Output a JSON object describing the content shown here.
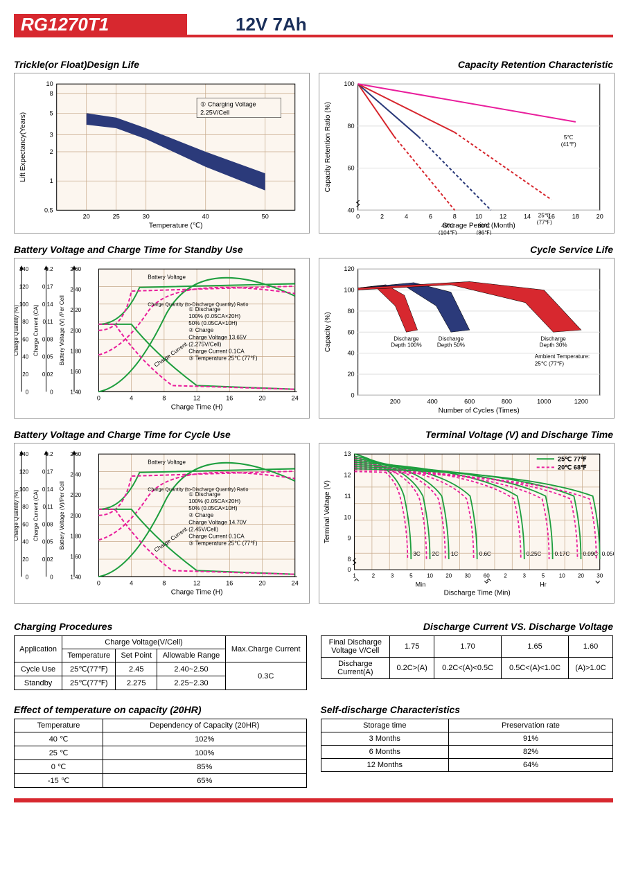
{
  "header": {
    "model": "RG1270T1",
    "spec": "12V  7Ah"
  },
  "chart1": {
    "title": "Trickle(or Float)Design Life",
    "type": "area-band",
    "xlabel": "Temperature (℃)",
    "ylabel": "Lift  Expectancy(Years)",
    "xlim": [
      15,
      55
    ],
    "xtick": [
      20,
      25,
      30,
      40,
      50
    ],
    "ylim_log_ticks": [
      0.5,
      1,
      2,
      3,
      5,
      8,
      10
    ],
    "band_color": "#2b3a7a",
    "band_upper": [
      [
        20,
        5
      ],
      [
        25,
        4.5
      ],
      [
        30,
        3.5
      ],
      [
        40,
        2
      ],
      [
        50,
        1.2
      ]
    ],
    "band_lower": [
      [
        20,
        3.8
      ],
      [
        25,
        3.5
      ],
      [
        30,
        2.7
      ],
      [
        40,
        1.4
      ],
      [
        50,
        0.8
      ]
    ],
    "annotation": "① Charging Voltage\n2.25V/Cell",
    "grid_color": "#c6a98a",
    "background": "#fcf6ef"
  },
  "chart2": {
    "title": "Capacity  Retention  Characteristic",
    "type": "line",
    "xlabel": "Storage Period (Month)",
    "ylabel": "Capacity Retention Ratio (%)",
    "xlim": [
      0,
      20
    ],
    "xtick_step": 2,
    "ylim": [
      40,
      100
    ],
    "ytick_step": 20,
    "background": "#fff",
    "grid_color": "#ddd",
    "lines": [
      {
        "label": "40℃\n(104℉)",
        "color": "#d7282f",
        "solid_to": 3,
        "dashed_to": 8,
        "points": [
          [
            0,
            100
          ],
          [
            3,
            75
          ],
          [
            8,
            40
          ]
        ]
      },
      {
        "label": "30℃\n(86℉)",
        "color": "#2b3a7a",
        "solid_to": 5,
        "dashed_to": 11,
        "points": [
          [
            0,
            100
          ],
          [
            5,
            75
          ],
          [
            11,
            40
          ]
        ]
      },
      {
        "label": "25℃\n(77℉)",
        "color": "#d7282f",
        "solid_to": 8,
        "dashed_to": 16,
        "points": [
          [
            0,
            100
          ],
          [
            8,
            77
          ],
          [
            16,
            45
          ]
        ]
      },
      {
        "label": "5℃\n(41℉)",
        "color": "#e91e9c",
        "solid_to": 18,
        "dashed_to": 18,
        "points": [
          [
            0,
            100
          ],
          [
            18,
            82
          ]
        ]
      }
    ]
  },
  "chart3": {
    "title": "Battery Voltage and Charge Time for Standby Use",
    "type": "multi-axis-line",
    "xlabel": "Charge Time (H)",
    "y1label": "Charge Quantity (%)",
    "y2label": "Charge Current (CA)",
    "y3label": "Battery Voltage (V) /Per Cell",
    "xlim": [
      0,
      24
    ],
    "xtick_step": 4,
    "y1_ticks": [
      0,
      20,
      40,
      60,
      80,
      100,
      120,
      140
    ],
    "y2_ticks": [
      0,
      0.02,
      0.05,
      0.08,
      0.11,
      0.14,
      0.17,
      0.2
    ],
    "y3_ticks": [
      1.4,
      1.6,
      1.8,
      2.0,
      2.2,
      2.4,
      2.6
    ],
    "grid_color": "#c6a98a",
    "background": "#fcf6ef",
    "green": "#1e9e3e",
    "pink": "#e91e9c",
    "note_lines": [
      "① Discharge",
      "  100% (0.05CA×20H)",
      "  50% (0.05CA×10H)",
      "② Charge",
      "  Charge Voltage 13.65V",
      "  (2.275V/Cell)",
      "  Charge Current 0.1CA",
      "③ Temperature 25℃ (77℉)"
    ],
    "labels": [
      "Battery Voltage",
      "Charge Quantity (to-Discharge Quantity) Ratio",
      "Charge Current"
    ]
  },
  "chart4": {
    "title": "Cycle Service Life",
    "type": "area-band",
    "xlabel": "Number of Cycles (Times)",
    "ylabel": "Capacity (%)",
    "xlim": [
      0,
      1300
    ],
    "xtick": [
      200,
      400,
      600,
      800,
      1000,
      1200
    ],
    "ylim": [
      0,
      120
    ],
    "ytick_step": 20,
    "background": "#fff",
    "grid_color": "#ddd",
    "bands": [
      {
        "label": "Discharge\nDepth 100%",
        "color": "#d7282f",
        "upper": [
          [
            0,
            102
          ],
          [
            150,
            105
          ],
          [
            250,
            95
          ],
          [
            320,
            62
          ]
        ],
        "lower": [
          [
            0,
            100
          ],
          [
            100,
            102
          ],
          [
            200,
            85
          ],
          [
            260,
            60
          ]
        ]
      },
      {
        "label": "Discharge\nDepth 50%",
        "color": "#2b3a7a",
        "upper": [
          [
            0,
            102
          ],
          [
            300,
            107
          ],
          [
            500,
            98
          ],
          [
            600,
            62
          ]
        ],
        "lower": [
          [
            0,
            100
          ],
          [
            250,
            104
          ],
          [
            420,
            85
          ],
          [
            500,
            60
          ]
        ]
      },
      {
        "label": "Discharge\nDepth 30%",
        "color": "#d7282f",
        "upper": [
          [
            0,
            102
          ],
          [
            600,
            108
          ],
          [
            1000,
            100
          ],
          [
            1200,
            62
          ]
        ],
        "lower": [
          [
            0,
            100
          ],
          [
            500,
            105
          ],
          [
            900,
            88
          ],
          [
            1050,
            60
          ]
        ]
      }
    ],
    "note": "Ambient Temperature:\n25℃ (77℉)"
  },
  "chart5": {
    "title": "Battery Voltage and Charge Time for Cycle Use",
    "type": "multi-axis-line",
    "xlabel": "Charge Time (H)",
    "y1label": "Charge Quantity (%)",
    "y2label": "Charge Current (CA)",
    "y3label": "Battery Voltage (V)/Per Cell",
    "xlim": [
      0,
      24
    ],
    "xtick_step": 4,
    "y1_ticks": [
      0,
      20,
      40,
      60,
      80,
      100,
      120,
      140
    ],
    "y2_ticks": [
      0,
      0.02,
      0.05,
      0.08,
      0.11,
      0.14,
      0.17,
      0.2
    ],
    "y3_ticks": [
      1.4,
      1.6,
      1.8,
      2.0,
      2.2,
      2.4,
      2.6
    ],
    "grid_color": "#c6a98a",
    "background": "#fcf6ef",
    "green": "#1e9e3e",
    "pink": "#e91e9c",
    "note_lines": [
      "① Discharge",
      "  100% (0.05CA×20H)",
      "  50% (0.05CA×10H)",
      "② Charge",
      "  Charge Voltage 14.70V",
      "  (2.45V/Cell)",
      "  Charge Current 0.1CA",
      "③ Temperature 25℃ (77℉)"
    ],
    "labels": [
      "Battery Voltage",
      "Charge Quantity (to-Discharge Quantity) Ratio",
      "Charge Current"
    ]
  },
  "chart6": {
    "title": "Terminal Voltage (V) and Discharge Time",
    "type": "line",
    "xlabel": "Discharge Time (Min)",
    "ylabel": "Terminal Voltage (V)",
    "x_ticks_labels": [
      "1",
      "2",
      "3",
      "5",
      "10",
      "20",
      "30",
      "60",
      "2",
      "3",
      "5",
      "10",
      "20",
      "30"
    ],
    "x_sections": [
      "Min",
      "Hr"
    ],
    "ylim": [
      0,
      13.5
    ],
    "ytick": [
      0,
      8,
      9,
      10,
      11,
      12,
      13
    ],
    "grid_color": "#c6a98a",
    "background": "#fcf6ef",
    "legend": [
      {
        "label": "25℃ 77℉",
        "color": "#1e9e3e",
        "dash": false
      },
      {
        "label": "20℃ 68℉",
        "color": "#e91e9c",
        "dash": true
      }
    ],
    "curves": [
      "3C",
      "2C",
      "1C",
      "0.6C",
      "0.25C",
      "0.17C",
      "0.09C",
      "0.05C"
    ]
  },
  "charging_procedures": {
    "title": "Charging Procedures",
    "headers": {
      "app": "Application",
      "cv": "Charge Voltage(V/Cell)",
      "tmp": "Temperature",
      "sp": "Set Point",
      "ar": "Allowable Range",
      "mcc": "Max.Charge Current"
    },
    "rows": [
      {
        "app": "Cycle Use",
        "tmp": "25℃(77℉)",
        "sp": "2.45",
        "ar": "2.40~2.50"
      },
      {
        "app": "Standby",
        "tmp": "25℃(77℉)",
        "sp": "2.275",
        "ar": "2.25~2.30"
      }
    ],
    "mcc_value": "0.3C"
  },
  "discharge_vs_voltage": {
    "title": "Discharge Current VS. Discharge Voltage",
    "row1_label": "Final Discharge\nVoltage V/Cell",
    "row1_vals": [
      "1.75",
      "1.70",
      "1.65",
      "1.60"
    ],
    "row2_label": "Discharge\nCurrent(A)",
    "row2_vals": [
      "0.2C>(A)",
      "0.2C<(A)<0.5C",
      "0.5C<(A)<1.0C",
      "(A)>1.0C"
    ]
  },
  "temp_capacity": {
    "title": "Effect of temperature on capacity (20HR)",
    "headers": [
      "Temperature",
      "Dependency of Capacity (20HR)"
    ],
    "rows": [
      [
        "40 ℃",
        "102%"
      ],
      [
        "25 ℃",
        "100%"
      ],
      [
        "0 ℃",
        "85%"
      ],
      [
        "-15 ℃",
        "65%"
      ]
    ]
  },
  "self_discharge": {
    "title": "Self-discharge Characteristics",
    "headers": [
      "Storage time",
      "Preservation rate"
    ],
    "rows": [
      [
        "3 Months",
        "91%"
      ],
      [
        "6 Months",
        "82%"
      ],
      [
        "12 Months",
        "64%"
      ]
    ]
  }
}
